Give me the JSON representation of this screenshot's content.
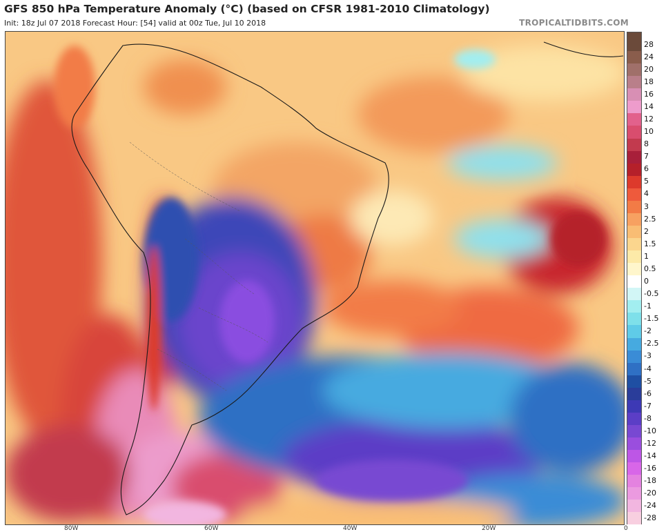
{
  "header": {
    "title": "GFS 850 hPa Temperature Anomaly (°C) (based on CFSR 1981-2010 Climatology)",
    "subtitle": "Init: 18z Jul 07 2018   Forecast Hour: [54]   valid at 00z Tue, Jul 10 2018",
    "brand": "TROPICALTIDBITS.COM"
  },
  "colorbar": {
    "levels": [
      {
        "label": "28",
        "color": "#6b4a3a"
      },
      {
        "label": "24",
        "color": "#8a5d4c"
      },
      {
        "label": "20",
        "color": "#a0706a"
      },
      {
        "label": "18",
        "color": "#b97f8a"
      },
      {
        "label": "16",
        "color": "#d88fb4"
      },
      {
        "label": "14",
        "color": "#ee9ccc"
      },
      {
        "label": "12",
        "color": "#e2618c"
      },
      {
        "label": "10",
        "color": "#d94d6e"
      },
      {
        "label": "8",
        "color": "#c23a4e"
      },
      {
        "label": "7",
        "color": "#a81f3a"
      },
      {
        "label": "6",
        "color": "#b5202a"
      },
      {
        "label": "5",
        "color": "#dd3a2c"
      },
      {
        "label": "4",
        "color": "#ee5a3c"
      },
      {
        "label": "3",
        "color": "#f27b46"
      },
      {
        "label": "2.5",
        "color": "#f7a161"
      },
      {
        "label": "2",
        "color": "#f9bd74"
      },
      {
        "label": "1.5",
        "color": "#fbd68e"
      },
      {
        "label": "1",
        "color": "#fdeaa8"
      },
      {
        "label": "0.5",
        "color": "#fff6cc"
      },
      {
        "label": "0",
        "color": "#ffffff"
      },
      {
        "label": "-0.5",
        "color": "#d2f6f6"
      },
      {
        "label": "-1",
        "color": "#a2eef0"
      },
      {
        "label": "-1.5",
        "color": "#7ee0ea"
      },
      {
        "label": "-2",
        "color": "#5fcbe8"
      },
      {
        "label": "-2.5",
        "color": "#46aae0"
      },
      {
        "label": "-3",
        "color": "#3a8cd6"
      },
      {
        "label": "-4",
        "color": "#2f70c4"
      },
      {
        "label": "-5",
        "color": "#1f4fa3"
      },
      {
        "label": "-6",
        "color": "#2a3d9a"
      },
      {
        "label": "-7",
        "color": "#3d39b5"
      },
      {
        "label": "-8",
        "color": "#5b3ec6"
      },
      {
        "label": "-10",
        "color": "#7848d2"
      },
      {
        "label": "-12",
        "color": "#9a4ede"
      },
      {
        "label": "-14",
        "color": "#bd56e6"
      },
      {
        "label": "-16",
        "color": "#d866e8"
      },
      {
        "label": "-18",
        "color": "#e482e0"
      },
      {
        "label": "-20",
        "color": "#eb9ae0"
      },
      {
        "label": "-24",
        "color": "#f2b6e0"
      },
      {
        "label": "-28",
        "color": "#f8cfe0"
      }
    ]
  },
  "axes": {
    "lon_labels": [
      "80W",
      "60W",
      "40W",
      "20W",
      "0"
    ]
  }
}
